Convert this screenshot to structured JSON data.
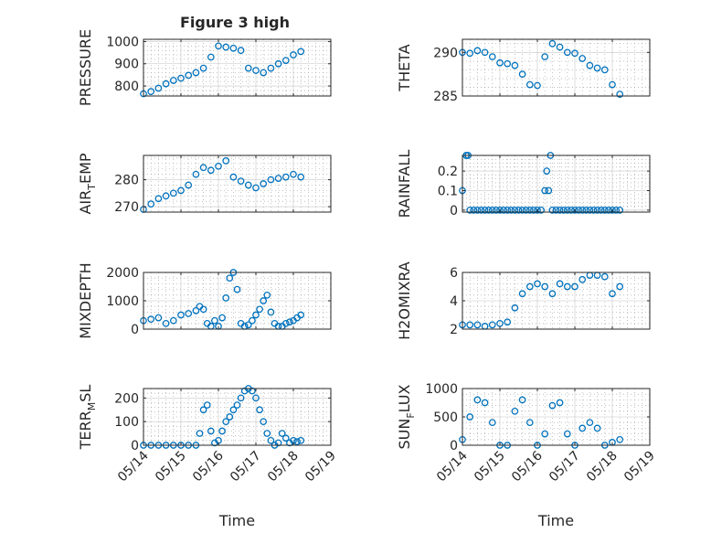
{
  "figure": {
    "title": "Figure 3 high",
    "xlabel": "Time",
    "marker_color": "#0072BD",
    "axis_color": "#262626",
    "grid_color": "#a0a0a0",
    "background": "#ffffff"
  },
  "chart_data": [
    {
      "type": "scatter",
      "marker": "circle-open",
      "ylabel": "PRESSURE",
      "xlim": [
        "05/14",
        "05/19"
      ],
      "x_ticks": [
        "05/14",
        "05/15",
        "05/16",
        "05/17",
        "05/18",
        "05/19"
      ],
      "show_x_ticklabels": false,
      "ylim": [
        755,
        1010
      ],
      "y_ticks": [
        800,
        900,
        1000
      ],
      "y_ticklabels": [
        "800",
        "900",
        "1000"
      ],
      "grid": true,
      "series": [
        {
          "x": [
            14.0,
            14.2,
            14.4,
            14.6,
            14.8,
            15.0,
            15.2,
            15.4,
            15.6,
            15.8,
            16.0,
            16.2,
            16.4,
            16.6,
            16.8,
            17.0,
            17.2,
            17.4,
            17.6,
            17.8,
            18.0,
            18.2
          ],
          "y": [
            765,
            775,
            790,
            810,
            825,
            835,
            848,
            860,
            880,
            930,
            980,
            975,
            970,
            960,
            880,
            870,
            860,
            880,
            900,
            915,
            940,
            955
          ]
        }
      ]
    },
    {
      "type": "scatter",
      "marker": "circle-open",
      "ylabel": "THETA",
      "xlim": [
        "05/14",
        "05/19"
      ],
      "x_ticks": [
        "05/14",
        "05/15",
        "05/16",
        "05/17",
        "05/18",
        "05/19"
      ],
      "show_x_ticklabels": false,
      "ylim": [
        285,
        291.5
      ],
      "y_ticks": [
        285,
        290
      ],
      "y_ticklabels": [
        "285",
        "290"
      ],
      "grid": true,
      "series": [
        {
          "x": [
            14.0,
            14.2,
            14.4,
            14.6,
            14.8,
            15.0,
            15.2,
            15.4,
            15.6,
            15.8,
            16.0,
            16.2,
            16.4,
            16.6,
            16.8,
            17.0,
            17.2,
            17.4,
            17.6,
            17.8,
            18.0,
            18.2
          ],
          "y": [
            290,
            289.9,
            290.2,
            290,
            289.5,
            288.8,
            288.7,
            288.5,
            287.5,
            286.3,
            286.2,
            289.5,
            291.0,
            290.6,
            290,
            289.9,
            289.3,
            288.5,
            288.2,
            288,
            286.3,
            285.2
          ]
        }
      ]
    },
    {
      "type": "scatter",
      "marker": "circle-open",
      "ylabel": "AIR_TEMP",
      "ylabel_main": "AIR",
      "ylabel_sub": "T",
      "ylabel_rest": "EMP",
      "xlim": [
        "05/14",
        "05/19"
      ],
      "x_ticks": [
        "05/14",
        "05/15",
        "05/16",
        "05/17",
        "05/18",
        "05/19"
      ],
      "show_x_ticklabels": false,
      "ylim": [
        268,
        289
      ],
      "y_ticks": [
        270,
        280
      ],
      "y_ticklabels": [
        "270",
        "280"
      ],
      "grid": true,
      "series": [
        {
          "x": [
            14.0,
            14.2,
            14.4,
            14.6,
            14.8,
            15.0,
            15.2,
            15.4,
            15.6,
            15.8,
            16.0,
            16.2,
            16.4,
            16.6,
            16.8,
            17.0,
            17.2,
            17.4,
            17.6,
            17.8,
            18.0,
            18.2
          ],
          "y": [
            269,
            271,
            273,
            274,
            275,
            276,
            278,
            282,
            284.5,
            283.5,
            285,
            287,
            281,
            279.5,
            278,
            277,
            278.5,
            280,
            280.5,
            281,
            282,
            281
          ]
        }
      ]
    },
    {
      "type": "scatter",
      "marker": "circle-open",
      "ylabel": "RAINFALL",
      "xlim": [
        "05/14",
        "05/19"
      ],
      "x_ticks": [
        "05/14",
        "05/15",
        "05/16",
        "05/17",
        "05/18",
        "05/19"
      ],
      "show_x_ticklabels": false,
      "ylim": [
        -0.01,
        0.28
      ],
      "y_ticks": [
        0,
        0.1,
        0.2
      ],
      "y_ticklabels": [
        "0",
        "0.1",
        "0.2"
      ],
      "grid": true,
      "series": [
        {
          "x": [
            14.0,
            14.1,
            14.15,
            14.2,
            14.3,
            14.4,
            14.5,
            14.6,
            14.7,
            14.8,
            14.9,
            15.0,
            15.1,
            15.2,
            15.3,
            15.4,
            15.5,
            15.6,
            15.7,
            15.8,
            15.9,
            16.0,
            16.1,
            16.2,
            16.25,
            16.3,
            16.35,
            16.4,
            16.5,
            16.6,
            16.7,
            16.8,
            16.9,
            17.0,
            17.1,
            17.2,
            17.3,
            17.4,
            17.5,
            17.6,
            17.7,
            17.8,
            17.9,
            18.0,
            18.1,
            18.2
          ],
          "y": [
            0.1,
            0.28,
            0.28,
            0,
            0,
            0,
            0,
            0,
            0,
            0,
            0,
            0,
            0,
            0,
            0,
            0,
            0,
            0,
            0,
            0,
            0,
            0,
            0,
            0.1,
            0.2,
            0.1,
            0.28,
            0,
            0,
            0,
            0,
            0,
            0,
            0,
            0,
            0,
            0,
            0,
            0,
            0,
            0,
            0,
            0,
            0,
            0,
            0
          ]
        }
      ]
    },
    {
      "type": "scatter",
      "marker": "circle-open",
      "ylabel": "MIXDEPTH",
      "xlim": [
        "05/14",
        "05/19"
      ],
      "x_ticks": [
        "05/14",
        "05/15",
        "05/16",
        "05/17",
        "05/18",
        "05/19"
      ],
      "show_x_ticklabels": false,
      "ylim": [
        0,
        2000
      ],
      "y_ticks": [
        0,
        1000,
        2000
      ],
      "y_ticklabels": [
        "0",
        "1000",
        "2000"
      ],
      "grid": true,
      "series": [
        {
          "x": [
            14.0,
            14.2,
            14.4,
            14.6,
            14.8,
            15.0,
            15.2,
            15.4,
            15.5,
            15.6,
            15.7,
            15.8,
            15.9,
            16.0,
            16.1,
            16.2,
            16.3,
            16.4,
            16.5,
            16.6,
            16.7,
            16.8,
            16.9,
            17.0,
            17.1,
            17.2,
            17.3,
            17.4,
            17.5,
            17.6,
            17.7,
            17.8,
            17.9,
            18.0,
            18.1,
            18.2
          ],
          "y": [
            300,
            350,
            400,
            200,
            300,
            500,
            550,
            650,
            800,
            700,
            200,
            100,
            300,
            100,
            400,
            1100,
            1800,
            2000,
            1400,
            200,
            100,
            150,
            300,
            500,
            700,
            1000,
            1200,
            600,
            200,
            100,
            100,
            200,
            250,
            300,
            400,
            500
          ]
        }
      ]
    },
    {
      "type": "scatter",
      "marker": "circle-open",
      "ylabel": "H2OMIXRA",
      "xlim": [
        "05/14",
        "05/19"
      ],
      "x_ticks": [
        "05/14",
        "05/15",
        "05/16",
        "05/17",
        "05/18",
        "05/19"
      ],
      "show_x_ticklabels": false,
      "ylim": [
        2,
        6
      ],
      "y_ticks": [
        2,
        4,
        6
      ],
      "y_ticklabels": [
        "2",
        "4",
        "6"
      ],
      "grid": true,
      "series": [
        {
          "x": [
            14.0,
            14.2,
            14.4,
            14.6,
            14.8,
            15.0,
            15.2,
            15.4,
            15.6,
            15.8,
            16.0,
            16.2,
            16.4,
            16.6,
            16.8,
            17.0,
            17.2,
            17.4,
            17.6,
            17.8,
            18.0,
            18.2
          ],
          "y": [
            2.3,
            2.3,
            2.3,
            2.2,
            2.3,
            2.4,
            2.5,
            3.5,
            4.5,
            5.0,
            5.2,
            5.0,
            4.5,
            5.2,
            5.0,
            5.0,
            5.5,
            5.8,
            5.8,
            5.7,
            4.5,
            5.0
          ]
        }
      ]
    },
    {
      "type": "scatter",
      "marker": "circle-open",
      "ylabel": "TERR_MSL",
      "ylabel_main": "TERR",
      "ylabel_sub": "M",
      "ylabel_rest": "SL",
      "xlim": [
        "05/14",
        "05/19"
      ],
      "x_ticks": [
        "05/14",
        "05/15",
        "05/16",
        "05/17",
        "05/18",
        "05/19"
      ],
      "x_ticklabels": [
        "05/14",
        "05/15",
        "05/16",
        "05/17",
        "05/18",
        "05/19"
      ],
      "show_x_ticklabels": true,
      "xlabel": "Time",
      "ylim": [
        0,
        240
      ],
      "y_ticks": [
        0,
        100,
        200
      ],
      "y_ticklabels": [
        "0",
        "100",
        "200"
      ],
      "grid": true,
      "series": [
        {
          "x": [
            14.0,
            14.2,
            14.4,
            14.6,
            14.8,
            15.0,
            15.2,
            15.4,
            15.5,
            15.6,
            15.7,
            15.8,
            15.9,
            16.0,
            16.1,
            16.2,
            16.3,
            16.4,
            16.5,
            16.6,
            16.7,
            16.8,
            16.9,
            17.0,
            17.1,
            17.2,
            17.3,
            17.4,
            17.5,
            17.6,
            17.7,
            17.8,
            17.9,
            18.0,
            18.1,
            18.2
          ],
          "y": [
            0,
            0,
            0,
            0,
            0,
            0,
            0,
            0,
            50,
            150,
            170,
            60,
            10,
            20,
            60,
            100,
            120,
            150,
            170,
            200,
            230,
            240,
            230,
            200,
            150,
            100,
            50,
            20,
            0,
            10,
            50,
            30,
            10,
            20,
            15,
            20
          ]
        }
      ]
    },
    {
      "type": "scatter",
      "marker": "circle-open",
      "ylabel": "SUN_FLUX",
      "ylabel_main": "SUN",
      "ylabel_sub": "F",
      "ylabel_rest": "LUX",
      "xlim": [
        "05/14",
        "05/19"
      ],
      "x_ticks": [
        "05/14",
        "05/15",
        "05/16",
        "05/17",
        "05/18",
        "05/19"
      ],
      "x_ticklabels": [
        "05/14",
        "05/15",
        "05/16",
        "05/17",
        "05/18",
        "05/19"
      ],
      "show_x_ticklabels": true,
      "xlabel": "Time",
      "ylim": [
        0,
        1000
      ],
      "y_ticks": [
        0,
        500,
        1000
      ],
      "y_ticklabels": [
        "0",
        "500",
        "1000"
      ],
      "grid": true,
      "series": [
        {
          "x": [
            14.0,
            14.2,
            14.4,
            14.6,
            14.8,
            15.0,
            15.2,
            15.4,
            15.6,
            15.8,
            16.0,
            16.2,
            16.4,
            16.6,
            16.8,
            17.0,
            17.2,
            17.4,
            17.6,
            17.8,
            18.0,
            18.2
          ],
          "y": [
            100,
            500,
            800,
            750,
            400,
            0,
            0,
            600,
            800,
            400,
            0,
            200,
            700,
            750,
            200,
            0,
            300,
            400,
            300,
            0,
            50,
            100
          ]
        }
      ]
    }
  ]
}
